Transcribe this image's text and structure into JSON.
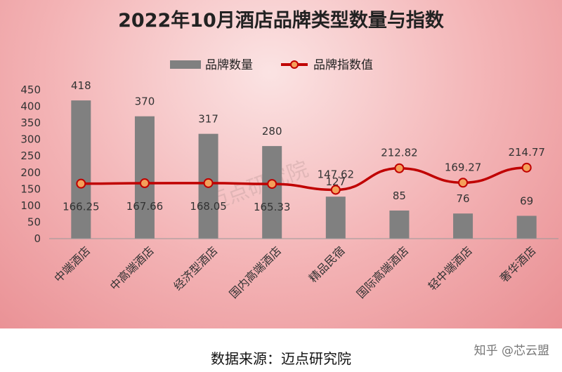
{
  "colors": {
    "bar": "#808080",
    "line": "#c00000",
    "marker_fill": "#f4a05a",
    "marker_stroke": "#c00000"
  },
  "chart_data": {
    "type": "bar",
    "title": "2022年10月酒店品牌类型数量与指数",
    "categories": [
      "中端酒店",
      "中高端酒店",
      "经济型酒店",
      "国内高端酒店",
      "精品民宿",
      "国际高端酒店",
      "轻中端酒店",
      "奢华酒店"
    ],
    "series": [
      {
        "name": "品牌数量",
        "kind": "bar",
        "values": [
          418,
          370,
          317,
          280,
          127,
          85,
          76,
          69
        ]
      },
      {
        "name": "品牌指数值",
        "kind": "line",
        "values": [
          166.25,
          167.66,
          168.05,
          165.33,
          147.62,
          212.82,
          169.27,
          214.77
        ]
      }
    ],
    "ylim": [
      0,
      450
    ],
    "yticks": [
      0,
      50,
      100,
      150,
      200,
      250,
      300,
      350,
      400,
      450
    ],
    "grid": false,
    "legend": "top-center",
    "xlabel": "",
    "ylabel": ""
  },
  "watermark": {
    "center": "迈点研究院",
    "credit": "知乎 @芯云盟"
  },
  "footer": {
    "source": "数据来源：迈点研究院"
  }
}
